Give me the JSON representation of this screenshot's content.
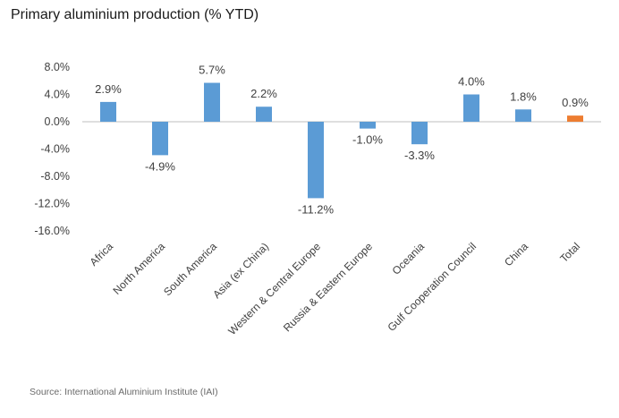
{
  "title": "Primary aluminium production (% YTD)",
  "source": "Source: International Aluminium Institute (IAI)",
  "colors": {
    "bar": "#5b9bd5",
    "highlight": "#ed7d31",
    "axis": "#bfbfbf"
  },
  "chart_data": {
    "type": "bar",
    "title": "Primary aluminium production (% YTD)",
    "categories": [
      "Africa",
      "North America",
      "South America",
      "Asia (ex China)",
      "Western & Central Europe",
      "Russia & Eastern Europe",
      "Oceania",
      "Gulf Cooperation Council",
      "China",
      "Total"
    ],
    "values": [
      2.9,
      -4.9,
      5.7,
      2.2,
      -11.2,
      -1.0,
      -3.3,
      4.0,
      1.8,
      0.9
    ],
    "data_labels": [
      "2.9%",
      "-4.9%",
      "5.7%",
      "2.2%",
      "-11.2%",
      "-1.0%",
      "-3.3%",
      "4.0%",
      "1.8%",
      "0.9%"
    ],
    "highlight_category": "Total",
    "ylim": [
      -16.0,
      8.0
    ],
    "y_ticks": [
      8.0,
      4.0,
      0.0,
      -4.0,
      -8.0,
      -12.0,
      -16.0
    ],
    "y_tick_labels": [
      "8.0%",
      "4.0%",
      "0.0%",
      "-4.0%",
      "-8.0%",
      "-12.0%",
      "-16.0%"
    ],
    "grid": false,
    "legend": "none"
  }
}
